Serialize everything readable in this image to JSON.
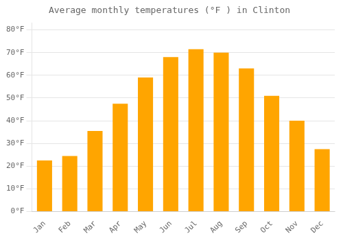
{
  "chart_data": {
    "type": "bar",
    "title": "Average monthly temperatures (°F ) in Clinton",
    "categories": [
      "Jan",
      "Feb",
      "Mar",
      "Apr",
      "May",
      "Jun",
      "Jul",
      "Aug",
      "Sep",
      "Oct",
      "Nov",
      "Dec"
    ],
    "values": [
      22.5,
      24.5,
      35.5,
      47.5,
      59.0,
      68.0,
      71.5,
      70.0,
      63.0,
      51.0,
      40.0,
      27.5
    ],
    "color": "#FFA500",
    "ylim": [
      0,
      83
    ],
    "yticks": [
      {
        "value": 0,
        "label": "0°F"
      },
      {
        "value": 10,
        "label": "10°F"
      },
      {
        "value": 20,
        "label": "20°F"
      },
      {
        "value": 30,
        "label": "30°F"
      },
      {
        "value": 40,
        "label": "40°F"
      },
      {
        "value": 50,
        "label": "50°F"
      },
      {
        "value": 60,
        "label": "60°F"
      },
      {
        "value": 70,
        "label": "70°F"
      },
      {
        "value": 80,
        "label": "80°F"
      }
    ],
    "grid": true
  }
}
